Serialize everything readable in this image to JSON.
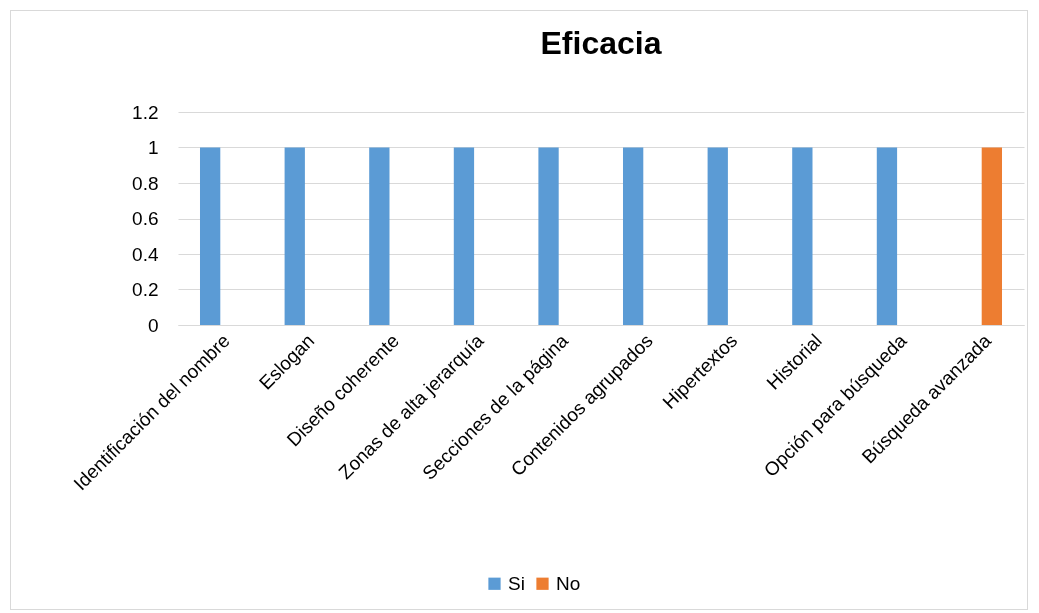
{
  "chart_data": {
    "type": "bar",
    "title": "Eficacia",
    "categories": [
      "Identificación del nombre",
      "Eslogan",
      "Diseño coherente",
      "Zonas de alta jerarquía",
      "Secciones de la página",
      "Contenidos agrupados",
      "Hipertextos",
      "Historial",
      "Opción para búsqueda",
      "Búsqueda avanzada"
    ],
    "series": [
      {
        "name": "Si",
        "color": "#5b9bd5",
        "values": [
          1,
          1,
          1,
          1,
          1,
          1,
          1,
          1,
          1,
          null
        ]
      },
      {
        "name": "No",
        "color": "#ed7d31",
        "values": [
          null,
          null,
          null,
          null,
          null,
          null,
          null,
          null,
          null,
          1
        ]
      }
    ],
    "ylim": [
      0,
      1.2
    ],
    "yticks": [
      0,
      0.2,
      0.4,
      0.6,
      0.8,
      1,
      1.2
    ],
    "grid": "y",
    "legend": "bottom"
  }
}
